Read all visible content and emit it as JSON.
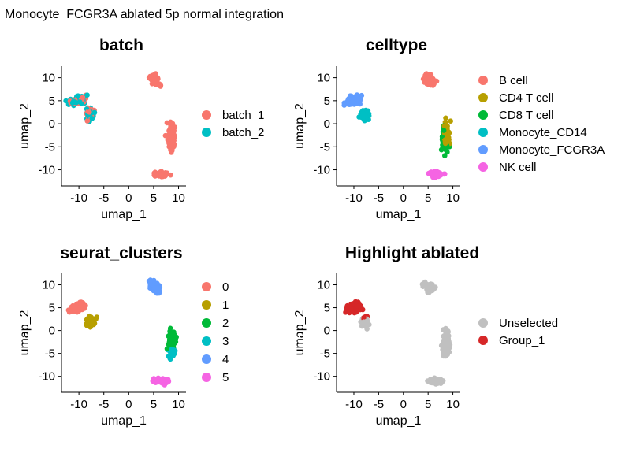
{
  "title": "Monocyte_FCGR3A ablated 5p normal integration",
  "chart_data": [
    {
      "type": "scatter",
      "title": "batch",
      "xlabel": "umap_1",
      "ylabel": "umap_2",
      "xlim": [
        -13.5,
        11.5
      ],
      "ylim": [
        -13.5,
        12.5
      ],
      "xticks": [
        -10,
        -5,
        0,
        5,
        10
      ],
      "yticks": [
        -10,
        -5,
        0,
        5,
        10
      ],
      "legend_position": "right",
      "series": [
        {
          "name": "batch_1",
          "color": "#F8766D"
        },
        {
          "name": "batch_2",
          "color": "#00BFC4"
        }
      ]
    },
    {
      "type": "scatter",
      "title": "celltype",
      "xlabel": "umap_1",
      "ylabel": "umap_2",
      "xlim": [
        -13.5,
        11.5
      ],
      "ylim": [
        -13.5,
        12.5
      ],
      "xticks": [
        -10,
        -5,
        0,
        5,
        10
      ],
      "yticks": [
        -10,
        -5,
        0,
        5,
        10
      ],
      "legend_position": "right",
      "series": [
        {
          "name": "B cell",
          "color": "#F8766D"
        },
        {
          "name": "CD4 T cell",
          "color": "#B79F00"
        },
        {
          "name": "CD8 T cell",
          "color": "#00BA38"
        },
        {
          "name": "Monocyte_CD14",
          "color": "#00BFC4"
        },
        {
          "name": "Monocyte_FCGR3A",
          "color": "#619CFF"
        },
        {
          "name": "NK cell",
          "color": "#F564E3"
        }
      ]
    },
    {
      "type": "scatter",
      "title": "seurat_clusters",
      "xlabel": "umap_1",
      "ylabel": "umap_2",
      "xlim": [
        -13.5,
        11.5
      ],
      "ylim": [
        -13.5,
        12.5
      ],
      "xticks": [
        -10,
        -5,
        0,
        5,
        10
      ],
      "yticks": [
        -10,
        -5,
        0,
        5,
        10
      ],
      "legend_position": "right",
      "series": [
        {
          "name": "0",
          "color": "#F8766D"
        },
        {
          "name": "1",
          "color": "#B79F00"
        },
        {
          "name": "2",
          "color": "#00BA38"
        },
        {
          "name": "3",
          "color": "#00BFC4"
        },
        {
          "name": "4",
          "color": "#619CFF"
        },
        {
          "name": "5",
          "color": "#F564E3"
        }
      ]
    },
    {
      "type": "scatter",
      "title": "Highlight ablated",
      "xlabel": "umap_1",
      "ylabel": "umap_2",
      "xlim": [
        -13.5,
        11.5
      ],
      "ylim": [
        -13.5,
        12.5
      ],
      "xticks": [
        -10,
        -5,
        0,
        5,
        10
      ],
      "yticks": [
        -10,
        -5,
        0,
        5,
        10
      ],
      "legend_position": "right",
      "series": [
        {
          "name": "Unselected",
          "color": "#C0C0C0"
        },
        {
          "name": "Group_1",
          "color": "#D62728"
        }
      ]
    }
  ]
}
